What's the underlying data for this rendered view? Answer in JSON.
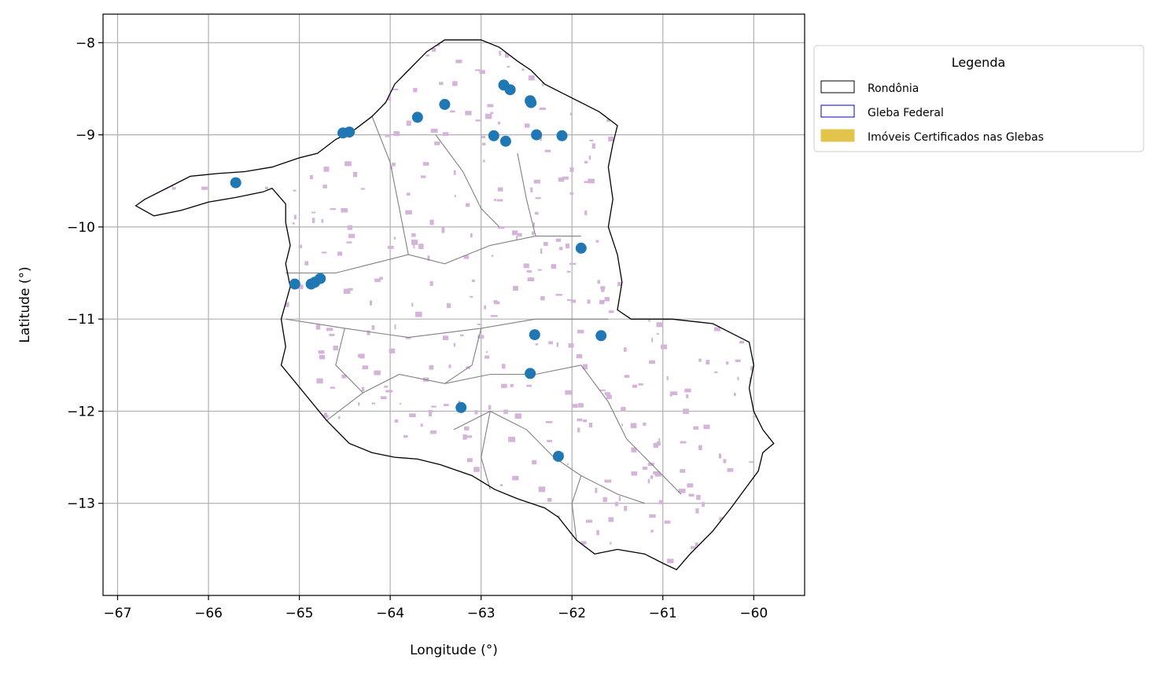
{
  "chart_data": {
    "type": "scatter",
    "xlabel": "Longitude (°)",
    "ylabel": "Latitude (°)",
    "xlim": [
      -67.16,
      -59.44
    ],
    "ylim": [
      -14.0,
      -7.69
    ],
    "x_ticks": [
      -67,
      -66,
      -65,
      -64,
      -63,
      -62,
      -61,
      -60
    ],
    "y_ticks": [
      -8,
      -9,
      -10,
      -11,
      -12,
      -13
    ],
    "x_tick_labels": [
      "−67",
      "−66",
      "−65",
      "−64",
      "−63",
      "−62",
      "−61",
      "−60"
    ],
    "y_tick_labels": [
      "−8",
      "−9",
      "−10",
      "−11",
      "−12",
      "−13"
    ],
    "grid": true,
    "legend_position": "outside-top-right",
    "legend": {
      "title": "Legenda",
      "entries": [
        {
          "label": "Rondônia",
          "edge": "#000000",
          "fill": "none"
        },
        {
          "label": "Gleba Federal",
          "edge": "#0000cc",
          "fill": "none"
        },
        {
          "label": "Imóveis Certificados nas Glebas",
          "edge": "#e3c44a",
          "fill": "#e3c44a"
        }
      ]
    },
    "colors": {
      "points": "#1f77b4",
      "state_outline": "#000000",
      "internal_lines": "#808080",
      "parcels": "#d4b4d8"
    },
    "points": [
      {
        "lon": -65.7,
        "lat": -9.52
      },
      {
        "lon": -64.52,
        "lat": -8.98
      },
      {
        "lon": -64.45,
        "lat": -8.97
      },
      {
        "lon": -63.7,
        "lat": -8.81
      },
      {
        "lon": -63.4,
        "lat": -8.67
      },
      {
        "lon": -62.75,
        "lat": -8.46
      },
      {
        "lon": -62.68,
        "lat": -8.51
      },
      {
        "lon": -62.46,
        "lat": -8.63
      },
      {
        "lon": -62.45,
        "lat": -8.65
      },
      {
        "lon": -62.86,
        "lat": -9.01
      },
      {
        "lon": -62.73,
        "lat": -9.07
      },
      {
        "lon": -62.39,
        "lat": -9.0
      },
      {
        "lon": -62.11,
        "lat": -9.01
      },
      {
        "lon": -65.05,
        "lat": -10.62
      },
      {
        "lon": -64.87,
        "lat": -10.62
      },
      {
        "lon": -64.83,
        "lat": -10.6
      },
      {
        "lon": -64.77,
        "lat": -10.56
      },
      {
        "lon": -61.9,
        "lat": -10.23
      },
      {
        "lon": -62.41,
        "lat": -11.17
      },
      {
        "lon": -61.68,
        "lat": -11.18
      },
      {
        "lon": -62.46,
        "lat": -11.59
      },
      {
        "lon": -63.22,
        "lat": -11.96
      },
      {
        "lon": -62.15,
        "lat": -12.49
      }
    ],
    "boundary": [
      [
        -66.8,
        -9.77
      ],
      [
        -66.6,
        -9.88
      ],
      [
        -66.3,
        -9.82
      ],
      [
        -66.0,
        -9.73
      ],
      [
        -65.7,
        -9.68
      ],
      [
        -65.4,
        -9.62
      ],
      [
        -65.3,
        -9.58
      ],
      [
        -65.15,
        -9.75
      ],
      [
        -65.15,
        -9.95
      ],
      [
        -65.1,
        -10.2
      ],
      [
        -65.15,
        -10.4
      ],
      [
        -65.1,
        -10.65
      ],
      [
        -65.2,
        -11.0
      ],
      [
        -65.15,
        -11.3
      ],
      [
        -65.2,
        -11.5
      ],
      [
        -64.95,
        -11.8
      ],
      [
        -64.7,
        -12.1
      ],
      [
        -64.45,
        -12.35
      ],
      [
        -64.2,
        -12.45
      ],
      [
        -63.95,
        -12.5
      ],
      [
        -63.7,
        -12.52
      ],
      [
        -63.45,
        -12.58
      ],
      [
        -63.1,
        -12.7
      ],
      [
        -62.85,
        -12.85
      ],
      [
        -62.6,
        -12.95
      ],
      [
        -62.3,
        -13.05
      ],
      [
        -62.15,
        -13.15
      ],
      [
        -61.95,
        -13.4
      ],
      [
        -61.75,
        -13.55
      ],
      [
        -61.5,
        -13.5
      ],
      [
        -61.2,
        -13.55
      ],
      [
        -61.0,
        -13.65
      ],
      [
        -60.85,
        -13.72
      ],
      [
        -60.7,
        -13.55
      ],
      [
        -60.45,
        -13.3
      ],
      [
        -60.25,
        -13.05
      ],
      [
        -60.1,
        -12.85
      ],
      [
        -59.95,
        -12.65
      ],
      [
        -59.9,
        -12.45
      ],
      [
        -59.78,
        -12.35
      ],
      [
        -59.9,
        -12.2
      ],
      [
        -60.0,
        -12.0
      ],
      [
        -60.05,
        -11.75
      ],
      [
        -60.0,
        -11.5
      ],
      [
        -60.05,
        -11.25
      ],
      [
        -60.25,
        -11.15
      ],
      [
        -60.45,
        -11.05
      ],
      [
        -60.9,
        -11.0
      ],
      [
        -61.35,
        -11.0
      ],
      [
        -61.5,
        -10.9
      ],
      [
        -61.45,
        -10.6
      ],
      [
        -61.5,
        -10.3
      ],
      [
        -61.6,
        -10.0
      ],
      [
        -61.55,
        -9.7
      ],
      [
        -61.6,
        -9.35
      ],
      [
        -61.55,
        -9.1
      ],
      [
        -61.5,
        -8.9
      ],
      [
        -61.7,
        -8.75
      ],
      [
        -61.9,
        -8.65
      ],
      [
        -62.1,
        -8.55
      ],
      [
        -62.3,
        -8.45
      ],
      [
        -62.45,
        -8.3
      ],
      [
        -62.6,
        -8.2
      ],
      [
        -62.8,
        -8.05
      ],
      [
        -63.0,
        -7.97
      ],
      [
        -63.2,
        -7.97
      ],
      [
        -63.4,
        -7.97
      ],
      [
        -63.6,
        -8.1
      ],
      [
        -63.8,
        -8.3
      ],
      [
        -63.95,
        -8.45
      ],
      [
        -64.05,
        -8.65
      ],
      [
        -64.2,
        -8.8
      ],
      [
        -64.4,
        -8.95
      ],
      [
        -64.6,
        -9.05
      ],
      [
        -64.8,
        -9.2
      ],
      [
        -65.0,
        -9.25
      ],
      [
        -65.3,
        -9.35
      ],
      [
        -65.6,
        -9.4
      ],
      [
        -65.9,
        -9.42
      ],
      [
        -66.2,
        -9.45
      ],
      [
        -66.5,
        -9.6
      ],
      [
        -66.7,
        -9.7
      ]
    ],
    "divisions": [
      [
        [
          -65.15,
          -10.5
        ],
        [
          -64.6,
          -10.5
        ],
        [
          -64.2,
          -10.4
        ],
        [
          -63.8,
          -10.3
        ],
        [
          -63.4,
          -10.4
        ],
        [
          -62.9,
          -10.2
        ],
        [
          -62.4,
          -10.1
        ],
        [
          -61.9,
          -10.1
        ]
      ],
      [
        [
          -65.15,
          -11.0
        ],
        [
          -64.5,
          -11.1
        ],
        [
          -63.8,
          -11.2
        ],
        [
          -63.0,
          -11.1
        ],
        [
          -62.4,
          -11.0
        ],
        [
          -61.6,
          -11.0
        ]
      ],
      [
        [
          -64.7,
          -12.1
        ],
        [
          -64.3,
          -11.8
        ],
        [
          -63.9,
          -11.6
        ],
        [
          -63.4,
          -11.7
        ],
        [
          -62.9,
          -11.6
        ],
        [
          -62.4,
          -11.6
        ],
        [
          -61.9,
          -11.5
        ]
      ],
      [
        [
          -63.3,
          -12.2
        ],
        [
          -62.9,
          -12.0
        ],
        [
          -62.5,
          -12.2
        ],
        [
          -62.2,
          -12.5
        ],
        [
          -61.9,
          -12.7
        ],
        [
          -61.5,
          -12.9
        ],
        [
          -61.2,
          -13.0
        ]
      ],
      [
        [
          -63.5,
          -9.0
        ],
        [
          -63.2,
          -9.4
        ],
        [
          -63.0,
          -9.8
        ],
        [
          -62.8,
          -10.0
        ]
      ],
      [
        [
          -64.2,
          -8.8
        ],
        [
          -64.0,
          -9.3
        ],
        [
          -63.9,
          -9.8
        ],
        [
          -63.8,
          -10.3
        ]
      ],
      [
        [
          -62.6,
          -9.2
        ],
        [
          -62.5,
          -9.7
        ],
        [
          -62.4,
          -10.1
        ]
      ],
      [
        [
          -61.9,
          -11.5
        ],
        [
          -61.6,
          -11.9
        ],
        [
          -61.4,
          -12.3
        ],
        [
          -61.1,
          -12.6
        ],
        [
          -60.8,
          -12.9
        ]
      ],
      [
        [
          -63.0,
          -11.1
        ],
        [
          -63.1,
          -11.5
        ],
        [
          -63.4,
          -11.7
        ]
      ],
      [
        [
          -64.5,
          -11.1
        ],
        [
          -64.6,
          -11.5
        ],
        [
          -64.3,
          -11.8
        ]
      ],
      [
        [
          -62.9,
          -12.0
        ],
        [
          -63.0,
          -12.5
        ],
        [
          -62.9,
          -12.85
        ]
      ],
      [
        [
          -61.9,
          -12.7
        ],
        [
          -62.0,
          -13.0
        ],
        [
          -61.95,
          -13.4
        ]
      ]
    ]
  }
}
